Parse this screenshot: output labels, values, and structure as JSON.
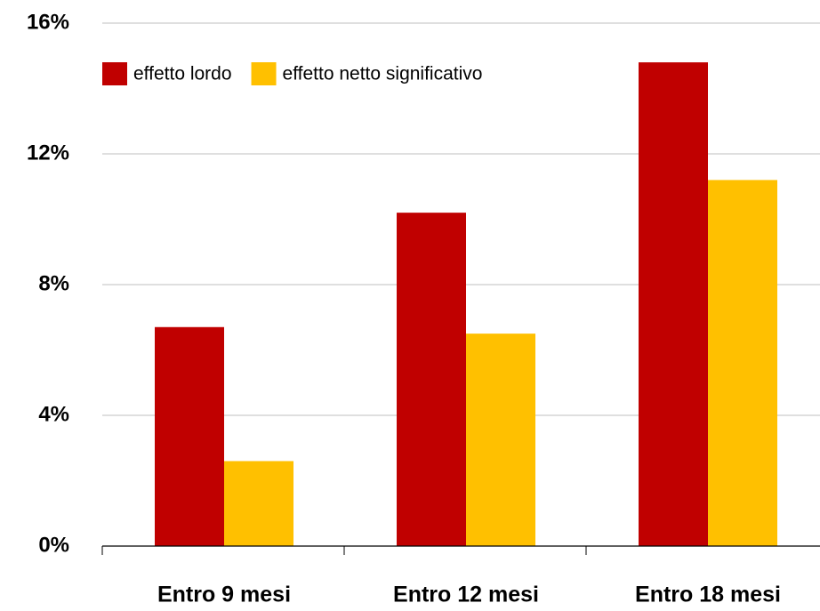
{
  "chart_data": {
    "type": "bar",
    "categories": [
      "Entro 9 mesi",
      "Entro 12 mesi",
      "Entro 18 mesi"
    ],
    "series": [
      {
        "name": "effetto lordo",
        "color": "#c00000",
        "values": [
          6.7,
          10.2,
          14.8
        ]
      },
      {
        "name": "effetto netto significativo",
        "color": "#ffc000",
        "values": [
          2.6,
          6.5,
          11.2
        ]
      }
    ],
    "ylim": [
      0,
      16
    ],
    "yticks": [
      {
        "value": 0,
        "label": "0%"
      },
      {
        "value": 4,
        "label": "4%"
      },
      {
        "value": 8,
        "label": "8%"
      },
      {
        "value": 12,
        "label": "12%"
      },
      {
        "value": 16,
        "label": "16%"
      }
    ],
    "grid": true,
    "legend": "top-left"
  }
}
